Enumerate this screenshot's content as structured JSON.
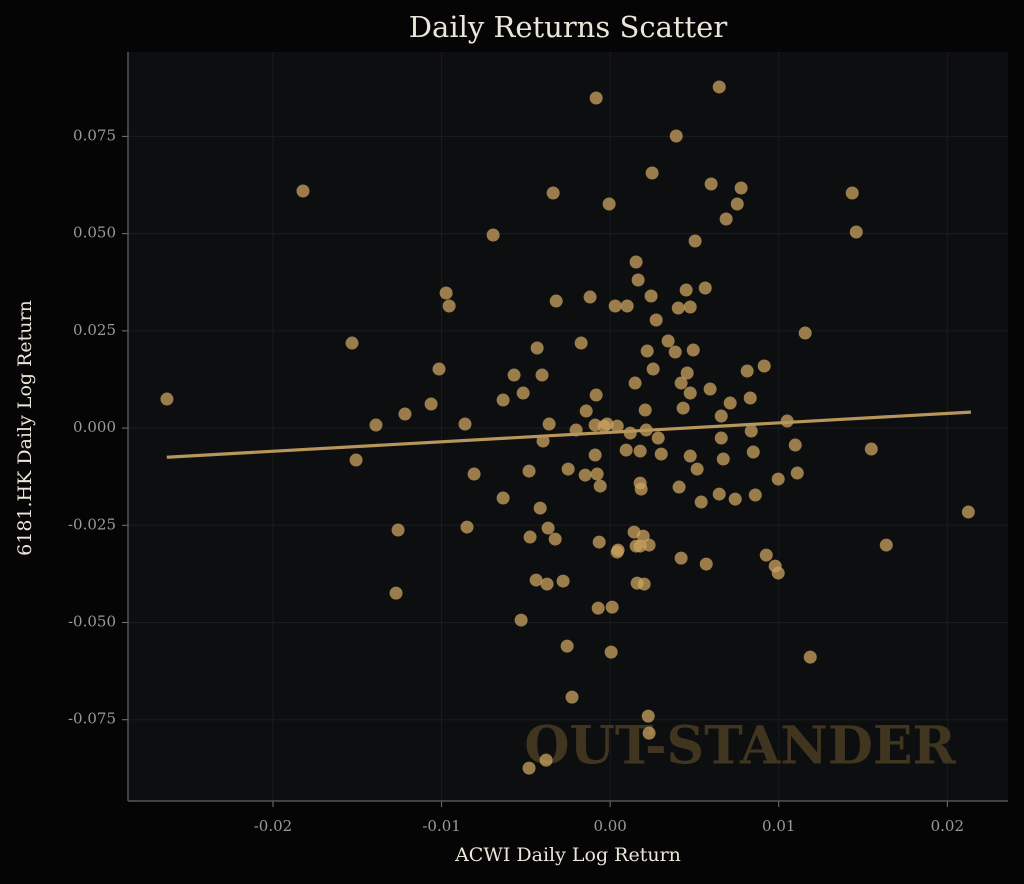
{
  "chart_data": {
    "type": "scatter",
    "title": "Daily Returns Scatter",
    "x_label": "ACWI Daily Log Return",
    "y_label": "6181.HK Daily Log Return",
    "watermark": "OUT-STANDER",
    "color": "#c9a35f",
    "line_color": "#b8955a",
    "grid": true,
    "xlim": [
      -0.0286,
      0.0236
    ],
    "ylim": [
      -0.0959,
      0.0967
    ],
    "xticks": [
      -0.02,
      -0.01,
      {
        "value": 0,
        "label": "0.00"
      },
      0.01,
      0.02
    ],
    "yticks": [
      {
        "value": -0.075,
        "label": "-0.075"
      },
      {
        "value": -0.05,
        "label": "-0.050"
      },
      -0.025,
      {
        "value": 0,
        "label": "0.000"
      },
      0.025,
      {
        "value": 0.05,
        "label": "0.050"
      },
      0.075
    ],
    "x": [
      -0.02629,
      -0.01822,
      -0.01531,
      -0.01507,
      -0.01389,
      -0.01258,
      -0.0127,
      -0.01217,
      -0.01062,
      -0.01015,
      -0.00973,
      -0.00955,
      -0.00861,
      -0.00849,
      -0.00807,
      -0.00694,
      -0.00635,
      -0.00635,
      -0.0057,
      -0.00528,
      -0.00516,
      -0.00481,
      -0.00475,
      -0.00433,
      -0.00439,
      -0.00415,
      -0.00404,
      -0.00398,
      -0.00368,
      -0.00374,
      -0.00362,
      -0.00338,
      -0.00326,
      -0.0032,
      -0.00279,
      -0.00255,
      -0.00249,
      -0.00226,
      -0.00202,
      -0.00172,
      -0.00148,
      -0.00142,
      -0.00119,
      -0.00089,
      -0.00083,
      -0.00089,
      -0.00083,
      -0.00077,
      -0.00071,
      -0.00065,
      -0.00059,
      -0.00036,
      -0.00018,
      -6e-05,
      6e-05,
      0.00012,
      0.0003,
      0.00042,
      0.00042,
      0.00047,
      0.00095,
      0.00101,
      0.00119,
      0.00148,
      0.00154,
      0.00166,
      0.00142,
      0.00154,
      0.0016,
      0.00178,
      0.00178,
      0.00184,
      0.00178,
      0.00196,
      0.00208,
      0.00214,
      0.0022,
      0.00202,
      0.00231,
      0.00226,
      0.00231,
      0.00243,
      0.00249,
      0.00255,
      0.00273,
      0.00285,
      0.00303,
      0.00344,
      0.00386,
      0.00392,
      0.00404,
      0.00409,
      0.00421,
      0.00421,
      0.00433,
      0.00451,
      0.00457,
      0.00475,
      0.00475,
      0.00475,
      0.00493,
      0.00504,
      0.00516,
      0.0054,
      0.00564,
      0.0057,
      0.00593,
      0.00599,
      0.00647,
      0.00647,
      0.00659,
      0.00659,
      0.00671,
      0.00688,
      0.00712,
      0.00742,
      0.00754,
      0.00777,
      0.00813,
      0.00831,
      0.00837,
      0.00849,
      0.00861,
      0.00914,
      0.00926,
      0.00979,
      0.00997,
      0.00997,
      0.0105,
      0.01098,
      0.0111,
      0.01157,
      0.01187,
      0.01436,
      0.0146,
      0.01549,
      0.01638,
      0.02125,
      -0.00481,
      -0.0038
    ],
    "y": [
      0.00746,
      0.06096,
      0.02186,
      -0.00823,
      0.00077,
      -0.02623,
      -0.04244,
      0.0036,
      0.00617,
      0.01517,
      0.03472,
      0.03138,
      0.00103,
      -0.02546,
      -0.01183,
      0.04964,
      0.0072,
      -0.018,
      0.01363,
      -0.04938,
      0.009,
      -0.01106,
      -0.02803,
      0.02058,
      -0.03909,
      -0.02058,
      0.01363,
      -0.00334,
      -0.02572,
      -0.04012,
      0.00103,
      0.06044,
      -0.02855,
      0.03266,
      -0.03935,
      -0.05607,
      -0.01055,
      -0.06919,
      -0.00051,
      0.02186,
      -0.01209,
      0.00437,
      0.03369,
      0.00077,
      0.00849,
      -0.00694,
      0.08488,
      -0.01183,
      -0.0463,
      -0.02932,
      -0.01492,
      0.00051,
      0.00103,
      0.05761,
      -0.05761,
      -0.04604,
      0.03138,
      -0.03189,
      0.00051,
      -0.03138,
      -0.00566,
      0.03138,
      -0.00129,
      0.01157,
      0.0427,
      0.03807,
      -0.02675,
      -0.03035,
      -0.03987,
      -0.01415,
      -0.00592,
      -0.01569,
      -0.03035,
      -0.02778,
      0.00463,
      -0.00051,
      0.0198,
      -0.04012,
      -0.03009,
      -0.07407,
      -0.07845,
      0.03395,
      0.06559,
      0.01517,
      0.02778,
      -0.00257,
      -0.00669,
      0.02238,
      0.01955,
      0.0751,
      0.03086,
      -0.01517,
      0.01157,
      -0.03344,
      0.00514,
      0.03549,
      0.01415,
      0.03112,
      0.009,
      -0.0072,
      0.02006,
      0.0481,
      -0.01055,
      -0.01903,
      0.03601,
      -0.03498,
      0.01003,
      0.06276,
      0.08771,
      -0.01698,
      0.00309,
      -0.00257,
      -0.00797,
      0.05376,
      0.00643,
      -0.01826,
      0.05761,
      0.06173,
      0.01466,
      0.00772,
      -0.00077,
      -0.00617,
      -0.01723,
      0.01595,
      -0.03266,
      -0.03549,
      -0.03729,
      -0.01312,
      0.0018,
      -0.00437,
      -0.01157,
      0.02443,
      -0.0589,
      0.06044,
      0.05041,
      -0.0054,
      -0.03009,
      -0.0216,
      -0.08745,
      -0.08539
    ],
    "fit_line": {
      "x": [
        -0.0263,
        0.0214
      ],
      "y": [
        -0.0075,
        0.0041
      ]
    }
  }
}
